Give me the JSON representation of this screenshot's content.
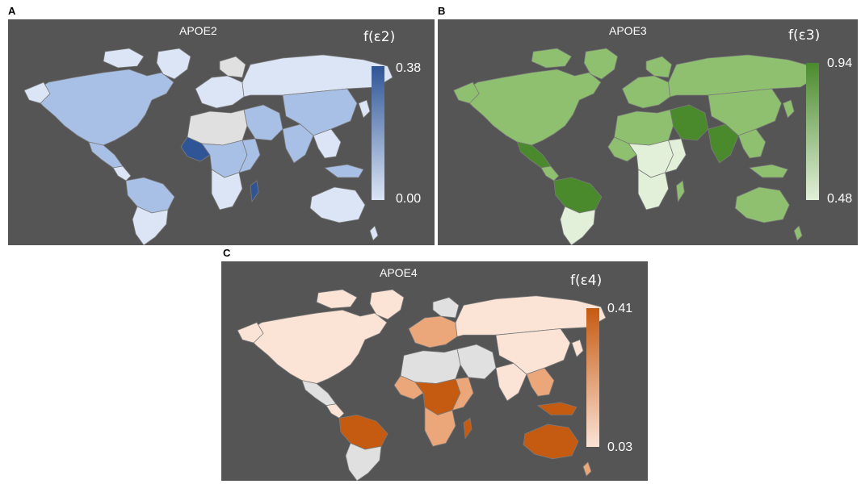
{
  "panels": [
    {
      "letter": "A",
      "title": "APOE2",
      "legend_title": "f(ε2)",
      "max": "0.38",
      "min": "0.00",
      "colors": {
        "light": "#dbe5f5",
        "mid": "#a9c0e6",
        "dark": "#2f5597"
      }
    },
    {
      "letter": "B",
      "title": "APOE3",
      "legend_title": "f(ε3)",
      "max": "0.94",
      "min": "0.48",
      "colors": {
        "light": "#e2f0d9",
        "mid": "#8fc06f",
        "dark": "#4a8a2c"
      }
    },
    {
      "letter": "C",
      "title": "APOE4",
      "legend_title": "f(ε4)",
      "max": "0.41",
      "min": "0.03",
      "colors": {
        "light": "#fbe3d6",
        "mid": "#eba779",
        "dark": "#c55a11"
      }
    }
  ],
  "map_colors": {
    "background": "#555555",
    "no_data": "#e0e0e0",
    "border": "#7a7a7a"
  }
}
